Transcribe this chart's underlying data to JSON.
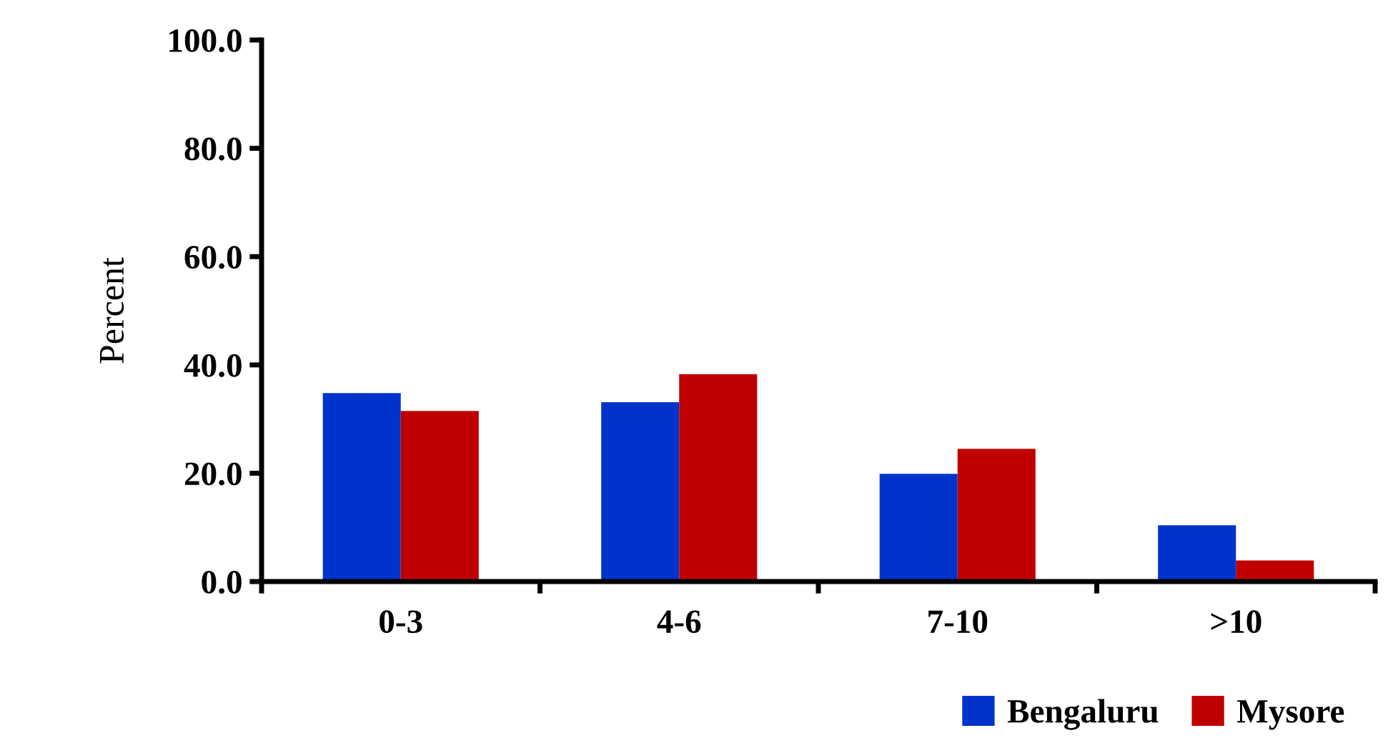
{
  "chart_data": {
    "type": "bar",
    "ylabel": "Percent",
    "categories": [
      "0-3",
      "4-6",
      "7-10",
      ">10"
    ],
    "series": [
      {
        "name": "Bengaluru",
        "color": "#0033cc",
        "values": [
          34.8,
          33.1,
          19.9,
          10.4
        ]
      },
      {
        "name": "Mysore",
        "color": "#c00000",
        "values": [
          31.5,
          38.3,
          24.5,
          3.9
        ]
      }
    ],
    "ylim": [
      0,
      100
    ],
    "yticks": [
      {
        "value": 0,
        "label": "0.0"
      },
      {
        "value": 20,
        "label": "20.0"
      },
      {
        "value": 40,
        "label": "40.0"
      },
      {
        "value": 60,
        "label": "60.0"
      },
      {
        "value": 80,
        "label": "80.0"
      },
      {
        "value": 100,
        "label": "100.0"
      }
    ],
    "grid": false,
    "legend": "bottom right"
  }
}
